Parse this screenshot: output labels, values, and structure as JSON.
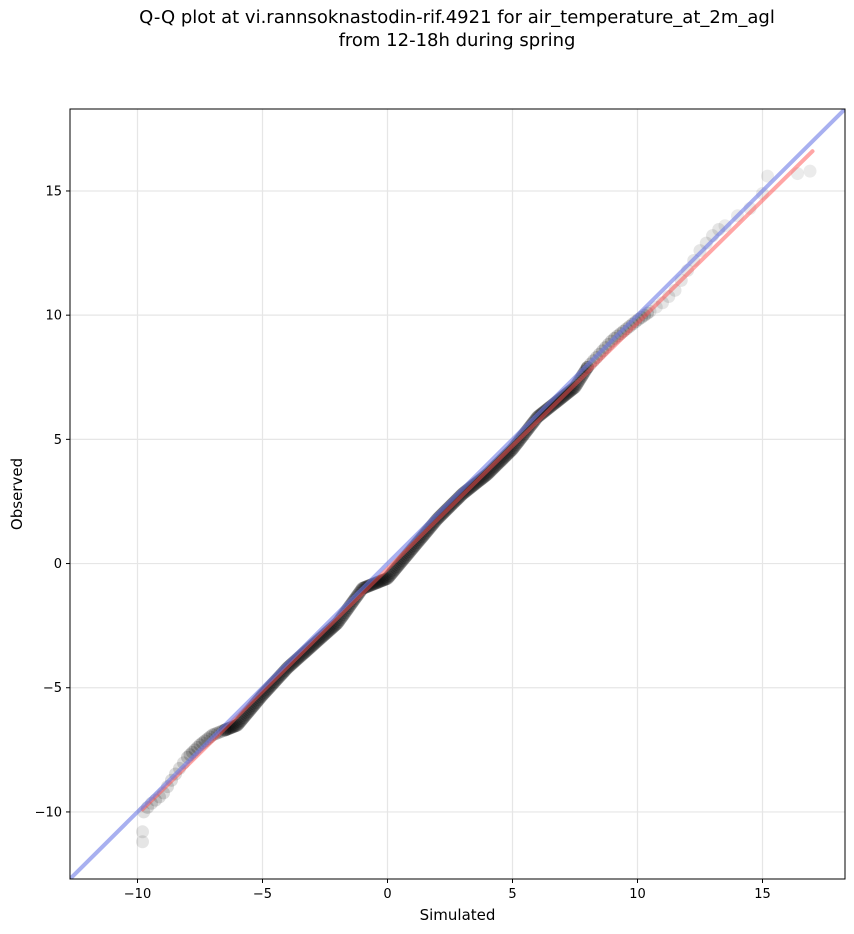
{
  "chart_data": {
    "type": "scatter",
    "title_lines": [
      "Q-Q plot at vi.rannsoknastodin-rif.4921 for air_temperature_at_2m_agl",
      "from 12-18h during spring"
    ],
    "xlabel": "Simulated",
    "ylabel": "Observed",
    "xlim": [
      -12.7,
      18.3
    ],
    "ylim": [
      -12.7,
      18.3
    ],
    "xticks": [
      -10,
      -5,
      0,
      5,
      10,
      15
    ],
    "yticks": [
      -10,
      -5,
      0,
      5,
      10,
      15
    ],
    "xtick_labels": [
      "−10",
      "−5",
      "0",
      "5",
      "10",
      "15"
    ],
    "ytick_labels": [
      "−10",
      "−5",
      "0",
      "5",
      "10",
      "15"
    ],
    "grid": true,
    "quantile_anchors": [
      [
        -9.8,
        -11.2
      ],
      [
        -9.8,
        -10.8
      ],
      [
        -9.75,
        -10.0
      ],
      [
        -9.5,
        -9.7
      ],
      [
        -9.0,
        -9.3
      ],
      [
        -8.5,
        -8.5
      ],
      [
        -8.0,
        -7.8
      ],
      [
        -7.5,
        -7.3
      ],
      [
        -7.0,
        -6.9
      ],
      [
        -6.0,
        -6.5
      ],
      [
        -5.0,
        -5.3
      ],
      [
        -4.0,
        -4.2
      ],
      [
        -3.0,
        -3.3
      ],
      [
        -2.0,
        -2.4
      ],
      [
        -1.0,
        -1.0
      ],
      [
        0.0,
        -0.6
      ],
      [
        1.0,
        0.6
      ],
      [
        2.0,
        1.8
      ],
      [
        3.0,
        2.8
      ],
      [
        4.0,
        3.6
      ],
      [
        5.0,
        4.6
      ],
      [
        6.0,
        5.9
      ],
      [
        7.0,
        6.7
      ],
      [
        7.5,
        7.1
      ],
      [
        8.0,
        7.9
      ],
      [
        9.0,
        9.0
      ],
      [
        10.0,
        9.8
      ],
      [
        11.0,
        10.5
      ],
      [
        11.5,
        11.0
      ],
      [
        12.0,
        11.8
      ],
      [
        12.5,
        12.6
      ],
      [
        13.0,
        13.2
      ],
      [
        13.5,
        13.7
      ],
      [
        14.5,
        14.3
      ],
      [
        15.2,
        15.1
      ],
      [
        16.4,
        15.7
      ],
      [
        16.9,
        15.8
      ]
    ],
    "series": [
      {
        "name": "",
        "style": "points",
        "color": "#000000"
      },
      {
        "name": "",
        "style": "line",
        "color": "#ff4d4d",
        "x": [
          -9.8,
          17.0
        ],
        "y": [
          -9.9,
          16.6
        ]
      },
      {
        "name": "",
        "style": "line",
        "color": "#6e7be6",
        "x": [
          -12.7,
          18.3
        ],
        "y": [
          -12.7,
          18.3
        ]
      }
    ]
  }
}
